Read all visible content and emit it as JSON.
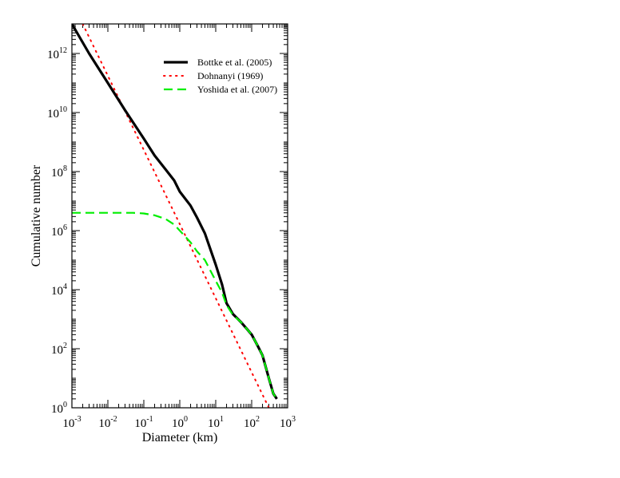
{
  "chart_data": {
    "type": "line",
    "title": "",
    "xlabel": "Diameter (km)",
    "ylabel": "Cumulative number",
    "xscale": "log",
    "yscale": "log",
    "xlim": [
      0.001,
      1000
    ],
    "ylim": [
      1,
      10000000000000.0
    ],
    "x_ticks": [
      {
        "base": "10",
        "exp": "-3",
        "value": 0.001
      },
      {
        "base": "10",
        "exp": "-2",
        "value": 0.01
      },
      {
        "base": "10",
        "exp": "-1",
        "value": 0.1
      },
      {
        "base": "10",
        "exp": "0",
        "value": 1
      },
      {
        "base": "10",
        "exp": "1",
        "value": 10
      },
      {
        "base": "10",
        "exp": "2",
        "value": 100
      },
      {
        "base": "10",
        "exp": "3",
        "value": 1000
      }
    ],
    "y_ticks": [
      {
        "base": "10",
        "exp": "0",
        "value": 1
      },
      {
        "base": "10",
        "exp": "2",
        "value": 100
      },
      {
        "base": "10",
        "exp": "4",
        "value": 10000
      },
      {
        "base": "10",
        "exp": "6",
        "value": 1000000
      },
      {
        "base": "10",
        "exp": "8",
        "value": 100000000
      },
      {
        "base": "10",
        "exp": "10",
        "value": 10000000000
      },
      {
        "base": "10",
        "exp": "12",
        "value": 1000000000000
      }
    ],
    "grid": false,
    "legend_position": "top-right",
    "series": [
      {
        "name": "Bottke et al. (2005)",
        "color": "#000000",
        "style": "solid",
        "x": [
          0.001,
          0.003,
          0.01,
          0.03,
          0.1,
          0.2,
          0.4,
          0.7,
          1,
          2,
          3,
          5,
          10,
          15,
          20,
          30,
          50,
          70,
          100,
          150,
          200,
          300,
          400,
          500
        ],
        "y": [
          10000000000000.0,
          1000000000000.0,
          100000000000.0,
          12000000000.0,
          1300000000.0,
          350000000.0,
          120000000.0,
          50000000.0,
          21000000.0,
          7000000.0,
          2800000.0,
          800000.0,
          70000.0,
          15000.0,
          3500.0,
          1500.0,
          800,
          500,
          300,
          120,
          60,
          10,
          3,
          2
        ]
      },
      {
        "name": "Dohnanyi (1969)",
        "color": "#ff0000",
        "style": "dotted",
        "x": [
          0.002,
          300
        ],
        "y": [
          10000000000000.0,
          1
        ]
      },
      {
        "name": "Yoshida et al. (2007)",
        "color": "#00ee00",
        "style": "dashed",
        "x": [
          0.001,
          0.01,
          0.05,
          0.1,
          0.2,
          0.4,
          0.7,
          1,
          2,
          3,
          5,
          10,
          15,
          20,
          30,
          50,
          70,
          100,
          150,
          200,
          300,
          400,
          500
        ],
        "y": [
          4000000.0,
          4000000.0,
          4000000.0,
          3800000.0,
          3300000.0,
          2500000.0,
          1600000.0,
          1000000.0,
          400000.0,
          200000.0,
          100000.0,
          20000.0,
          8000.0,
          3000.0,
          1400.0,
          800,
          500,
          300,
          120,
          60,
          10,
          3,
          2
        ]
      }
    ]
  }
}
